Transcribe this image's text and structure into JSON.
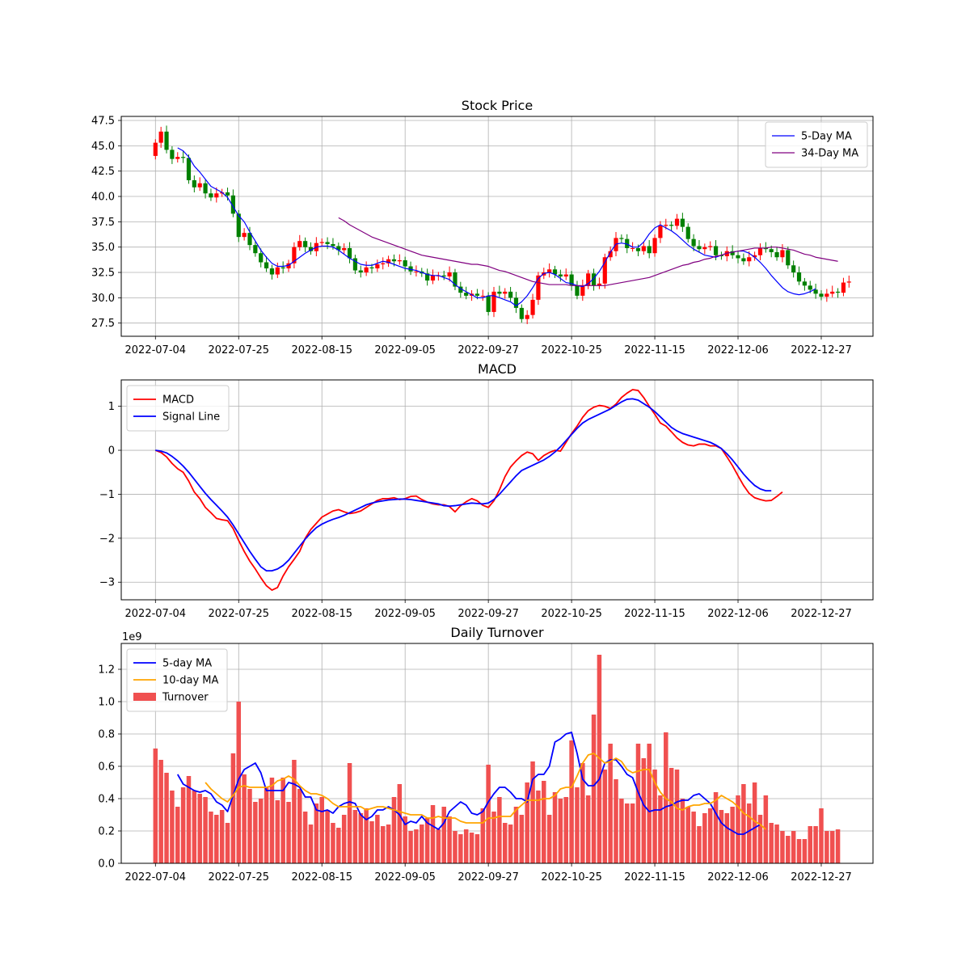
{
  "figure": {
    "background": "#ffffff"
  },
  "panels": {
    "price": {
      "title": "Stock Price"
    },
    "macd": {
      "title": "MACD"
    },
    "turnover": {
      "title": "Daily Turnover",
      "y_offset_label": "1e9"
    }
  },
  "chart_data": [
    {
      "type": "candlestick",
      "title": "Stock Price",
      "x_tick_labels": [
        "2022-07-04",
        "2022-07-25",
        "2022-08-15",
        "2022-09-05",
        "2022-09-27",
        "2022-10-25",
        "2022-11-15",
        "2022-12-06",
        "2022-12-27"
      ],
      "x_tick_index": [
        0,
        15,
        30,
        45,
        60,
        75,
        90,
        105,
        120
      ],
      "x_count": 124,
      "ylim": [
        26.2,
        47.9
      ],
      "y_ticks": [
        27.5,
        30.0,
        32.5,
        35.0,
        37.5,
        40.0,
        42.5,
        45.0,
        47.5
      ],
      "y_tick_labels": [
        "27.5",
        "30.0",
        "32.5",
        "35.0",
        "37.5",
        "40.0",
        "42.5",
        "45.0",
        "47.5"
      ],
      "grid": true,
      "legend_position": "upper right",
      "up_color": "#ff0000",
      "down_color": "#008000",
      "close": [
        45.3,
        46.4,
        44.6,
        43.7,
        43.9,
        43.8,
        41.6,
        40.9,
        41.3,
        40.3,
        39.9,
        40.3,
        40.4,
        40.1,
        38.3,
        36.0,
        36.4,
        35.2,
        34.4,
        33.5,
        32.9,
        32.3,
        33.0,
        32.9,
        33.4,
        35.0,
        35.6,
        35.0,
        34.6,
        35.4,
        35.5,
        35.3,
        35.1,
        34.7,
        34.9,
        33.9,
        32.7,
        32.5,
        33.0,
        32.9,
        33.3,
        33.4,
        33.8,
        33.6,
        33.7,
        33.1,
        32.6,
        32.6,
        32.4,
        31.7,
        32.2,
        32.2,
        32.1,
        32.5,
        31.1,
        30.5,
        30.2,
        30.4,
        30.2,
        30.2,
        28.6,
        30.6,
        30.4,
        30.6,
        30.0,
        29.0,
        27.9,
        28.3,
        29.8,
        32.2,
        32.5,
        32.8,
        32.3,
        32.1,
        32.3,
        31.2,
        30.2,
        31.2,
        32.4,
        31.2,
        31.4,
        34.0,
        34.6,
        35.9,
        35.8,
        34.9,
        34.9,
        34.6,
        35.1,
        34.4,
        35.9,
        37.1,
        37.2,
        37.1,
        37.8,
        37.0,
        35.8,
        35.1,
        34.8,
        35.0,
        35.1,
        34.2,
        34.1,
        34.6,
        34.2,
        33.9,
        33.6,
        34.0,
        34.2,
        34.9,
        34.8,
        34.5,
        34.0,
        34.7,
        33.2,
        32.5,
        31.6,
        31.2,
        30.8,
        30.4,
        30.1,
        30.4,
        30.6,
        30.5,
        31.5,
        31.6
      ],
      "series": [
        {
          "name": "5-Day MA",
          "color": "#0000ff",
          "start": 4,
          "values": [
            44.8,
            44.5,
            43.9,
            43.0,
            42.4,
            41.7,
            41.0,
            40.7,
            40.4,
            39.9,
            39.0,
            38.1,
            37.5,
            36.5,
            35.6,
            34.7,
            34.0,
            33.4,
            33.1,
            33.1,
            33.2,
            33.6,
            34.0,
            34.4,
            34.7,
            35.0,
            35.1,
            35.1,
            35.0,
            34.7,
            34.3,
            33.9,
            33.6,
            33.3,
            33.2,
            33.2,
            33.4,
            33.6,
            33.5,
            33.3,
            33.1,
            32.9,
            32.8,
            32.7,
            32.5,
            32.3,
            32.2,
            32.2,
            32.0,
            31.8,
            31.3,
            30.9,
            30.6,
            30.3,
            30.0,
            30.0,
            30.2,
            30.2,
            30.0,
            29.8,
            29.6,
            29.2,
            29.6,
            30.2,
            31.0,
            31.9,
            32.4,
            32.5,
            32.3,
            31.9,
            31.5,
            31.4,
            31.2,
            31.1,
            31.4,
            31.9,
            32.6,
            33.5,
            34.5,
            35.3,
            35.4,
            35.3,
            35.0,
            35.0,
            35.5,
            36.3,
            36.9,
            37.2,
            36.9,
            36.6,
            36.2,
            35.7,
            35.2,
            34.8,
            34.5,
            34.2,
            34.1,
            34.0,
            34.2,
            34.4,
            34.5,
            34.6,
            34.6,
            34.4,
            34.0,
            33.5,
            32.9,
            32.2,
            31.6,
            31.0,
            30.6,
            30.4,
            30.3,
            30.4,
            30.6,
            30.9
          ]
        },
        {
          "name": "34-Day MA",
          "color": "#800080",
          "start": 33,
          "values": [
            37.9,
            37.6,
            37.2,
            36.9,
            36.6,
            36.3,
            36.0,
            35.8,
            35.6,
            35.4,
            35.2,
            35.0,
            34.8,
            34.6,
            34.4,
            34.2,
            34.1,
            34.0,
            33.9,
            33.8,
            33.7,
            33.6,
            33.5,
            33.4,
            33.3,
            33.3,
            33.2,
            33.1,
            32.9,
            32.7,
            32.6,
            32.4,
            32.2,
            32.0,
            31.8,
            31.6,
            31.5,
            31.4,
            31.3,
            31.3,
            31.3,
            31.3,
            31.2,
            31.2,
            31.2,
            31.2,
            31.2,
            31.2,
            31.2,
            31.3,
            31.4,
            31.5,
            31.6,
            31.7,
            31.8,
            31.9,
            32.0,
            32.2,
            32.4,
            32.6,
            32.8,
            33.0,
            33.2,
            33.3,
            33.5,
            33.6,
            33.8,
            33.9,
            34.1,
            34.2,
            34.4,
            34.5,
            34.6,
            34.7,
            34.8,
            34.9,
            34.9,
            34.9,
            35.0,
            35.0,
            34.9,
            34.8,
            34.7,
            34.5,
            34.3,
            34.2,
            34.0,
            33.9,
            33.8,
            33.7,
            33.6
          ]
        }
      ]
    },
    {
      "type": "line",
      "title": "MACD",
      "x_tick_labels": [
        "2022-07-04",
        "2022-07-25",
        "2022-08-15",
        "2022-09-05",
        "2022-09-27",
        "2022-10-25",
        "2022-11-15",
        "2022-12-06",
        "2022-12-27"
      ],
      "x_tick_index": [
        0,
        15,
        30,
        45,
        60,
        75,
        90,
        105,
        120
      ],
      "x_count": 124,
      "ylim": [
        -3.4,
        1.6
      ],
      "y_ticks": [
        -3,
        -2,
        -1,
        0,
        1
      ],
      "y_tick_labels": [
        "−3",
        "−2",
        "−1",
        "0",
        "1"
      ],
      "grid": true,
      "legend_position": "upper left",
      "series": [
        {
          "name": "MACD",
          "color": "#ff0000",
          "values": [
            0.0,
            -0.05,
            -0.15,
            -0.3,
            -0.42,
            -0.5,
            -0.7,
            -0.95,
            -1.1,
            -1.3,
            -1.42,
            -1.55,
            -1.58,
            -1.6,
            -1.78,
            -2.05,
            -2.3,
            -2.52,
            -2.7,
            -2.9,
            -3.08,
            -3.18,
            -3.12,
            -2.86,
            -2.65,
            -2.48,
            -2.3,
            -2.0,
            -1.8,
            -1.66,
            -1.52,
            -1.45,
            -1.38,
            -1.35,
            -1.4,
            -1.44,
            -1.42,
            -1.38,
            -1.3,
            -1.22,
            -1.14,
            -1.1,
            -1.1,
            -1.08,
            -1.12,
            -1.1,
            -1.05,
            -1.04,
            -1.12,
            -1.18,
            -1.22,
            -1.24,
            -1.24,
            -1.28,
            -1.4,
            -1.26,
            -1.17,
            -1.1,
            -1.15,
            -1.25,
            -1.3,
            -1.15,
            -0.9,
            -0.6,
            -0.38,
            -0.24,
            -0.12,
            -0.04,
            -0.08,
            -0.23,
            -0.12,
            -0.05,
            0.0,
            -0.02,
            0.18,
            0.38,
            0.55,
            0.75,
            0.9,
            0.98,
            1.02,
            1.0,
            0.95,
            1.05,
            1.2,
            1.3,
            1.38,
            1.36,
            1.2,
            1.0,
            0.82,
            0.62,
            0.55,
            0.42,
            0.28,
            0.18,
            0.12,
            0.1,
            0.14,
            0.14,
            0.1,
            0.1,
            0.04,
            -0.15,
            -0.35,
            -0.58,
            -0.8,
            -0.98,
            -1.08,
            -1.12,
            -1.15,
            -1.14,
            -1.05,
            -0.95
          ]
        },
        {
          "name": "Signal Line",
          "color": "#0000ff",
          "values": [
            0.0,
            -0.02,
            -0.06,
            -0.14,
            -0.24,
            -0.36,
            -0.5,
            -0.66,
            -0.82,
            -0.98,
            -1.12,
            -1.25,
            -1.38,
            -1.52,
            -1.7,
            -1.9,
            -2.1,
            -2.3,
            -2.48,
            -2.65,
            -2.74,
            -2.74,
            -2.7,
            -2.62,
            -2.5,
            -2.34,
            -2.18,
            -2.02,
            -1.88,
            -1.76,
            -1.68,
            -1.62,
            -1.57,
            -1.53,
            -1.48,
            -1.42,
            -1.36,
            -1.3,
            -1.24,
            -1.2,
            -1.17,
            -1.15,
            -1.13,
            -1.12,
            -1.11,
            -1.11,
            -1.12,
            -1.14,
            -1.16,
            -1.18,
            -1.2,
            -1.22,
            -1.26,
            -1.27,
            -1.26,
            -1.24,
            -1.22,
            -1.2,
            -1.21,
            -1.22,
            -1.2,
            -1.12,
            -1.0,
            -0.86,
            -0.72,
            -0.58,
            -0.46,
            -0.4,
            -0.34,
            -0.28,
            -0.22,
            -0.14,
            -0.04,
            0.08,
            0.22,
            0.36,
            0.5,
            0.62,
            0.7,
            0.76,
            0.82,
            0.88,
            0.94,
            1.02,
            1.1,
            1.16,
            1.17,
            1.14,
            1.06,
            0.98,
            0.88,
            0.76,
            0.64,
            0.52,
            0.44,
            0.38,
            0.34,
            0.3,
            0.26,
            0.22,
            0.18,
            0.12,
            0.04,
            -0.08,
            -0.22,
            -0.38,
            -0.54,
            -0.68,
            -0.8,
            -0.88,
            -0.92,
            -0.92
          ]
        }
      ]
    },
    {
      "type": "bar",
      "title": "Daily Turnover",
      "x_tick_labels": [
        "2022-07-04",
        "2022-07-25",
        "2022-08-15",
        "2022-09-05",
        "2022-09-27",
        "2022-10-25",
        "2022-11-15",
        "2022-12-06",
        "2022-12-27"
      ],
      "x_tick_index": [
        0,
        15,
        30,
        45,
        60,
        75,
        90,
        105,
        120
      ],
      "x_count": 124,
      "ylim": [
        0,
        1.36
      ],
      "y_ticks": [
        0.0,
        0.2,
        0.4,
        0.6,
        0.8,
        1.0,
        1.2
      ],
      "y_tick_labels": [
        "0.0",
        "0.2",
        "0.4",
        "0.6",
        "0.8",
        "1.0",
        "1.2"
      ],
      "y_offset": "1e9",
      "grid": true,
      "legend_position": "upper left",
      "bar_name": "Turnover",
      "bar_color": "#f05050",
      "values": [
        0.71,
        0.64,
        0.56,
        0.45,
        0.35,
        0.47,
        0.54,
        0.45,
        0.43,
        0.41,
        0.32,
        0.3,
        0.33,
        0.25,
        0.68,
        1.0,
        0.55,
        0.46,
        0.38,
        0.4,
        0.47,
        0.53,
        0.39,
        0.53,
        0.38,
        0.64,
        0.46,
        0.32,
        0.24,
        0.37,
        0.41,
        0.33,
        0.25,
        0.22,
        0.3,
        0.62,
        0.33,
        0.31,
        0.34,
        0.26,
        0.3,
        0.23,
        0.24,
        0.41,
        0.49,
        0.29,
        0.2,
        0.21,
        0.24,
        0.28,
        0.36,
        0.21,
        0.35,
        0.29,
        0.2,
        0.18,
        0.21,
        0.19,
        0.18,
        0.34,
        0.61,
        0.32,
        0.41,
        0.25,
        0.24,
        0.35,
        0.3,
        0.5,
        0.63,
        0.45,
        0.51,
        0.3,
        0.44,
        0.4,
        0.41,
        0.76,
        0.47,
        0.62,
        0.42,
        0.92,
        1.29,
        0.58,
        0.74,
        0.52,
        0.4,
        0.37,
        0.37,
        0.74,
        0.65,
        0.74,
        0.58,
        0.42,
        0.81,
        0.59,
        0.58,
        0.4,
        0.35,
        0.32,
        0.23,
        0.31,
        0.34,
        0.44,
        0.33,
        0.31,
        0.35,
        0.42,
        0.49,
        0.37,
        0.5,
        0.3,
        0.42,
        0.25,
        0.24,
        0.2,
        0.17,
        0.2,
        0.15,
        0.15,
        0.23,
        0.23,
        0.34,
        0.2,
        0.2,
        0.21
      ],
      "series": [
        {
          "name": "5-day MA",
          "color": "#0000ff",
          "start": 4,
          "values": [
            0.55,
            0.49,
            0.47,
            0.45,
            0.44,
            0.45,
            0.43,
            0.38,
            0.36,
            0.32,
            0.42,
            0.52,
            0.58,
            0.6,
            0.62,
            0.56,
            0.45,
            0.45,
            0.45,
            0.45,
            0.5,
            0.49,
            0.47,
            0.41,
            0.41,
            0.33,
            0.32,
            0.33,
            0.31,
            0.35,
            0.37,
            0.38,
            0.37,
            0.3,
            0.27,
            0.29,
            0.33,
            0.33,
            0.35,
            0.33,
            0.3,
            0.24,
            0.26,
            0.25,
            0.29,
            0.25,
            0.23,
            0.21,
            0.25,
            0.32,
            0.35,
            0.38,
            0.36,
            0.31,
            0.3,
            0.32,
            0.38,
            0.43,
            0.47,
            0.47,
            0.44,
            0.4,
            0.4,
            0.38,
            0.52,
            0.55,
            0.55,
            0.6,
            0.75,
            0.77,
            0.8,
            0.81,
            0.68,
            0.52,
            0.48,
            0.48,
            0.52,
            0.62,
            0.64,
            0.64,
            0.6,
            0.55,
            0.53,
            0.44,
            0.36,
            0.32,
            0.33,
            0.33,
            0.35,
            0.36,
            0.38,
            0.39,
            0.39,
            0.42,
            0.43,
            0.4,
            0.37,
            0.31,
            0.25,
            0.22,
            0.2,
            0.18,
            0.18,
            0.2,
            0.22,
            0.24
          ]
        },
        {
          "name": "10-day MA",
          "color": "#ffa500",
          "start": 9,
          "values": [
            0.5,
            0.46,
            0.43,
            0.4,
            0.38,
            0.42,
            0.47,
            0.48,
            0.47,
            0.47,
            0.47,
            0.47,
            0.48,
            0.51,
            0.52,
            0.54,
            0.52,
            0.48,
            0.45,
            0.43,
            0.43,
            0.42,
            0.4,
            0.37,
            0.35,
            0.35,
            0.35,
            0.35,
            0.35,
            0.33,
            0.34,
            0.35,
            0.35,
            0.34,
            0.33,
            0.32,
            0.31,
            0.3,
            0.3,
            0.3,
            0.28,
            0.28,
            0.29,
            0.28,
            0.28,
            0.28,
            0.26,
            0.25,
            0.25,
            0.25,
            0.25,
            0.28,
            0.28,
            0.29,
            0.29,
            0.29,
            0.33,
            0.36,
            0.39,
            0.39,
            0.39,
            0.4,
            0.4,
            0.42,
            0.46,
            0.47,
            0.47,
            0.54,
            0.62,
            0.67,
            0.68,
            0.65,
            0.62,
            0.63,
            0.65,
            0.63,
            0.58,
            0.56,
            0.57,
            0.58,
            0.58,
            0.5,
            0.44,
            0.4,
            0.38,
            0.34,
            0.33,
            0.35,
            0.36,
            0.36,
            0.37,
            0.37,
            0.39,
            0.42,
            0.4,
            0.38,
            0.35,
            0.31,
            0.29,
            0.26,
            0.24,
            0.21
          ]
        }
      ]
    }
  ]
}
